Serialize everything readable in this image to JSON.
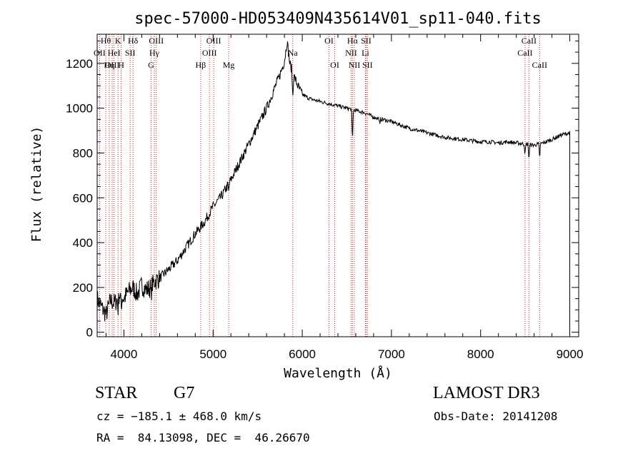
{
  "chart_data": {
    "type": "line",
    "title": "spec-57000-HD053409N435614V01_sp11-040.fits",
    "xlabel": "Wavelength (Å)",
    "ylabel": "Flux (relative)",
    "xlim": [
      3700,
      9100
    ],
    "ylim": [
      -20,
      1330
    ],
    "x_ticks": [
      4000,
      5000,
      6000,
      7000,
      8000,
      9000
    ],
    "y_ticks": [
      0,
      200,
      400,
      600,
      800,
      1000,
      1200
    ],
    "series": [
      {
        "name": "spectrum",
        "x": [
          3700,
          3750,
          3800,
          3850,
          3900,
          3950,
          4000,
          4050,
          4100,
          4150,
          4200,
          4250,
          4300,
          4350,
          4400,
          4450,
          4500,
          4600,
          4700,
          4800,
          4900,
          5000,
          5100,
          5200,
          5300,
          5400,
          5500,
          5600,
          5700,
          5750,
          5800,
          5830,
          5860,
          5900,
          5950,
          6000,
          6100,
          6200,
          6300,
          6400,
          6500,
          6600,
          6700,
          6800,
          6900,
          7000,
          7100,
          7200,
          7300,
          7400,
          7500,
          7600,
          7700,
          7800,
          7900,
          8000,
          8100,
          8200,
          8300,
          8400,
          8500,
          8600,
          8700,
          8800,
          8900,
          9000
        ],
        "y": [
          150,
          110,
          80,
          140,
          130,
          170,
          150,
          180,
          200,
          170,
          210,
          190,
          200,
          230,
          240,
          260,
          280,
          320,
          380,
          440,
          490,
          560,
          610,
          680,
          760,
          840,
          920,
          1000,
          1100,
          1150,
          1210,
          1300,
          1200,
          1150,
          1100,
          1060,
          1040,
          1030,
          1020,
          1010,
          1000,
          990,
          980,
          960,
          950,
          940,
          925,
          910,
          900,
          890,
          880,
          870,
          865,
          860,
          855,
          850,
          850,
          845,
          850,
          845,
          840,
          835,
          845,
          860,
          880,
          890
        ]
      }
    ],
    "spectral_lines": [
      {
        "label": "Hθ",
        "wavelength": 3797,
        "row": 0
      },
      {
        "label": "OII",
        "wavelength": 3727,
        "row": 1
      },
      {
        "label": "OIII",
        "wavelength": 3869,
        "row": 2
      },
      {
        "label": "K",
        "wavelength": 3934,
        "row": 0
      },
      {
        "label": "HeI",
        "wavelength": 3889,
        "row": 1
      },
      {
        "label": "Hη",
        "wavelength": 3835,
        "row": 2
      },
      {
        "label": "H",
        "wavelength": 3969,
        "row": 2
      },
      {
        "label": "SII",
        "wavelength": 4070,
        "row": 1
      },
      {
        "label": "Hδ",
        "wavelength": 4102,
        "row": 0
      },
      {
        "label": "OIII",
        "wavelength": 4363,
        "row": 0
      },
      {
        "label": "Hγ",
        "wavelength": 4341,
        "row": 1
      },
      {
        "label": "G",
        "wavelength": 4305,
        "row": 2
      },
      {
        "label": "Hβ",
        "wavelength": 4861,
        "row": 2
      },
      {
        "label": "OIII",
        "wavelength": 5007,
        "row": 0
      },
      {
        "label": "OIII",
        "wavelength": 4959,
        "row": 1
      },
      {
        "label": "Mg",
        "wavelength": 5175,
        "row": 2
      },
      {
        "label": "Na",
        "wavelength": 5893,
        "row": 1
      },
      {
        "label": "OI",
        "wavelength": 6300,
        "row": 0
      },
      {
        "label": "OI",
        "wavelength": 6364,
        "row": 2
      },
      {
        "label": "Hα",
        "wavelength": 6563,
        "row": 0
      },
      {
        "label": "NII",
        "wavelength": 6548,
        "row": 1
      },
      {
        "label": "NII",
        "wavelength": 6584,
        "row": 2
      },
      {
        "label": "SII",
        "wavelength": 6716,
        "row": 0
      },
      {
        "label": "Li",
        "wavelength": 6708,
        "row": 1
      },
      {
        "label": "SII",
        "wavelength": 6731,
        "row": 2
      },
      {
        "label": "CaII",
        "wavelength": 8542,
        "row": 0
      },
      {
        "label": "CaII",
        "wavelength": 8498,
        "row": 1
      },
      {
        "label": "CaII",
        "wavelength": 8662,
        "row": 2
      }
    ]
  },
  "info": {
    "class": "STAR",
    "subclass": "G7",
    "survey": "LAMOST DR3",
    "cz": "cz = −185.1 ± 468.0 km/s",
    "obs_date": "Obs-Date: 20141208",
    "radec": "RA =  84.13098, DEC =  46.26670"
  },
  "colors": {
    "spectrum": "#000000",
    "line_marker": "#cc2222",
    "axes": "#000000"
  }
}
